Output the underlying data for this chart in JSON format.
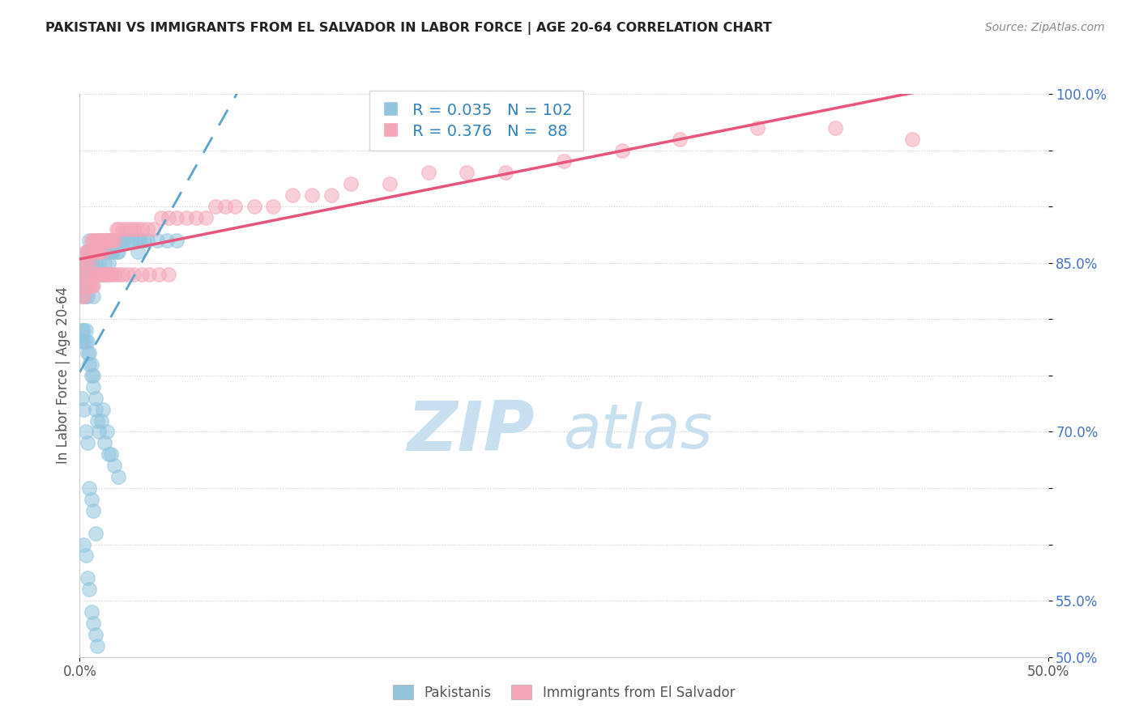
{
  "title": "PAKISTANI VS IMMIGRANTS FROM EL SALVADOR IN LABOR FORCE | AGE 20-64 CORRELATION CHART",
  "source": "Source: ZipAtlas.com",
  "ylabel": "In Labor Force | Age 20-64",
  "x_min": 0.0,
  "x_max": 0.5,
  "y_min": 0.5,
  "y_max": 1.0,
  "pakistani_R": 0.035,
  "pakistani_N": 102,
  "salvador_R": 0.376,
  "salvador_N": 88,
  "blue_color": "#92c5de",
  "pink_color": "#f4a6b8",
  "blue_line_color": "#5ba4cf",
  "pink_line_color": "#e8547a",
  "watermark_color": "#c8dff0",
  "background_color": "#ffffff",
  "pakistani_x": [
    0.001,
    0.001,
    0.001,
    0.002,
    0.002,
    0.002,
    0.002,
    0.003,
    0.003,
    0.003,
    0.003,
    0.004,
    0.004,
    0.004,
    0.005,
    0.005,
    0.005,
    0.005,
    0.006,
    0.006,
    0.006,
    0.007,
    0.007,
    0.007,
    0.008,
    0.008,
    0.008,
    0.009,
    0.009,
    0.01,
    0.01,
    0.01,
    0.011,
    0.011,
    0.012,
    0.012,
    0.013,
    0.013,
    0.014,
    0.014,
    0.015,
    0.015,
    0.016,
    0.017,
    0.018,
    0.019,
    0.02,
    0.021,
    0.022,
    0.023,
    0.025,
    0.027,
    0.03,
    0.03,
    0.031,
    0.033,
    0.035,
    0.04,
    0.045,
    0.05,
    0.001,
    0.001,
    0.002,
    0.002,
    0.003,
    0.003,
    0.004,
    0.004,
    0.005,
    0.005,
    0.006,
    0.006,
    0.007,
    0.007,
    0.008,
    0.008,
    0.009,
    0.01,
    0.011,
    0.012,
    0.013,
    0.014,
    0.015,
    0.016,
    0.018,
    0.02,
    0.001,
    0.002,
    0.003,
    0.004,
    0.005,
    0.006,
    0.007,
    0.008,
    0.002,
    0.003,
    0.004,
    0.005,
    0.006,
    0.007,
    0.008,
    0.009
  ],
  "pakistani_y": [
    0.84,
    0.83,
    0.82,
    0.84,
    0.85,
    0.83,
    0.82,
    0.85,
    0.84,
    0.83,
    0.82,
    0.86,
    0.84,
    0.82,
    0.85,
    0.84,
    0.86,
    0.87,
    0.84,
    0.85,
    0.83,
    0.86,
    0.84,
    0.82,
    0.86,
    0.85,
    0.84,
    0.86,
    0.84,
    0.86,
    0.87,
    0.85,
    0.87,
    0.84,
    0.86,
    0.84,
    0.86,
    0.85,
    0.86,
    0.87,
    0.87,
    0.85,
    0.86,
    0.86,
    0.87,
    0.86,
    0.86,
    0.87,
    0.87,
    0.87,
    0.87,
    0.87,
    0.86,
    0.87,
    0.87,
    0.87,
    0.87,
    0.87,
    0.87,
    0.87,
    0.78,
    0.79,
    0.78,
    0.79,
    0.78,
    0.79,
    0.77,
    0.78,
    0.76,
    0.77,
    0.75,
    0.76,
    0.74,
    0.75,
    0.73,
    0.72,
    0.71,
    0.7,
    0.71,
    0.72,
    0.69,
    0.7,
    0.68,
    0.68,
    0.67,
    0.66,
    0.73,
    0.72,
    0.7,
    0.69,
    0.65,
    0.64,
    0.63,
    0.61,
    0.6,
    0.59,
    0.57,
    0.56,
    0.54,
    0.53,
    0.52,
    0.51
  ],
  "salvador_x": [
    0.001,
    0.002,
    0.002,
    0.003,
    0.003,
    0.004,
    0.004,
    0.005,
    0.005,
    0.006,
    0.006,
    0.007,
    0.007,
    0.008,
    0.008,
    0.009,
    0.009,
    0.01,
    0.01,
    0.011,
    0.012,
    0.012,
    0.013,
    0.014,
    0.015,
    0.016,
    0.017,
    0.018,
    0.019,
    0.02,
    0.022,
    0.024,
    0.026,
    0.028,
    0.03,
    0.032,
    0.035,
    0.038,
    0.042,
    0.046,
    0.05,
    0.055,
    0.06,
    0.065,
    0.07,
    0.075,
    0.08,
    0.09,
    0.1,
    0.11,
    0.12,
    0.13,
    0.14,
    0.16,
    0.18,
    0.2,
    0.22,
    0.25,
    0.28,
    0.31,
    0.35,
    0.39,
    0.43,
    0.001,
    0.002,
    0.003,
    0.004,
    0.005,
    0.006,
    0.007,
    0.008,
    0.009,
    0.01,
    0.011,
    0.012,
    0.013,
    0.014,
    0.015,
    0.016,
    0.018,
    0.02,
    0.022,
    0.025,
    0.028,
    0.032,
    0.036,
    0.041,
    0.046
  ],
  "salvador_y": [
    0.84,
    0.85,
    0.84,
    0.86,
    0.85,
    0.86,
    0.84,
    0.86,
    0.85,
    0.87,
    0.86,
    0.87,
    0.86,
    0.87,
    0.86,
    0.87,
    0.86,
    0.87,
    0.86,
    0.87,
    0.86,
    0.87,
    0.87,
    0.87,
    0.87,
    0.87,
    0.87,
    0.87,
    0.88,
    0.88,
    0.88,
    0.88,
    0.88,
    0.88,
    0.88,
    0.88,
    0.88,
    0.88,
    0.89,
    0.89,
    0.89,
    0.89,
    0.89,
    0.89,
    0.9,
    0.9,
    0.9,
    0.9,
    0.9,
    0.91,
    0.91,
    0.91,
    0.92,
    0.92,
    0.93,
    0.93,
    0.93,
    0.94,
    0.95,
    0.96,
    0.97,
    0.97,
    0.96,
    0.82,
    0.82,
    0.83,
    0.83,
    0.83,
    0.83,
    0.83,
    0.84,
    0.84,
    0.84,
    0.84,
    0.84,
    0.84,
    0.84,
    0.84,
    0.84,
    0.84,
    0.84,
    0.84,
    0.84,
    0.84,
    0.84,
    0.84,
    0.84,
    0.84
  ]
}
